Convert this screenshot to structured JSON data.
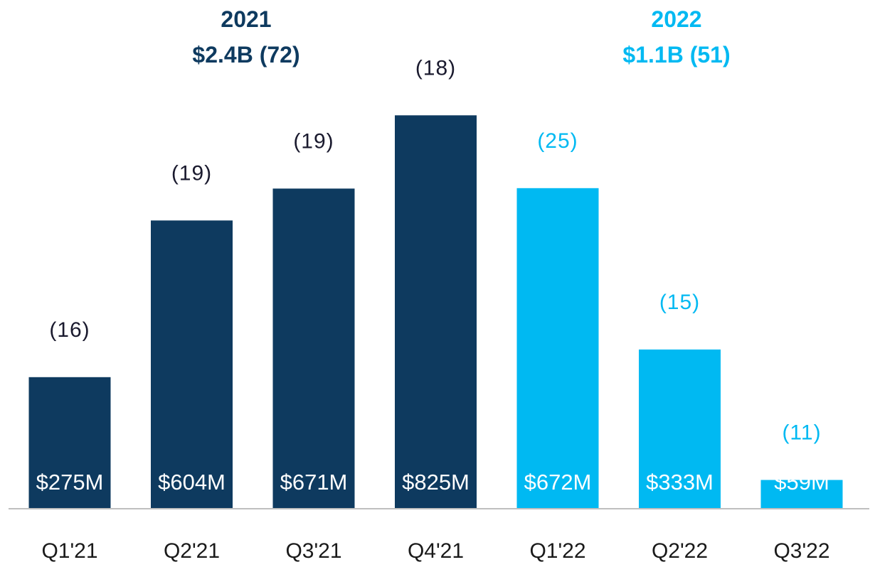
{
  "colors": {
    "dark_blue": "#0e3a5f",
    "light_blue": "#00b9f2",
    "count_dark": "#1a1a2e",
    "baseline": "#bfbfbf",
    "tick_text": "#1a1a1a"
  },
  "headers": {
    "y2021": {
      "year": "2021",
      "summary": "$2.4B (72)"
    },
    "y2022": {
      "year": "2022",
      "summary": "$1.1B (51)"
    }
  },
  "chart_data": {
    "type": "bar",
    "title": "",
    "xlabel": "",
    "ylabel": "",
    "ylim": [
      0,
      1000
    ],
    "grid": false,
    "categories": [
      "Q1'21",
      "Q2'21",
      "Q3'21",
      "Q4'21",
      "Q1'22",
      "Q2'22",
      "Q3'22"
    ],
    "values": [
      275,
      604,
      671,
      825,
      672,
      333,
      59
    ],
    "value_labels": [
      "$275M",
      "$604M",
      "$671M",
      "$825M",
      "$672M",
      "$333M",
      "$59M"
    ],
    "counts": [
      "(16)",
      "(19)",
      "(19)",
      "(18)",
      "(25)",
      "(15)",
      "(11)"
    ],
    "groups": [
      "2021",
      "2021",
      "2021",
      "2021",
      "2022",
      "2022",
      "2022"
    ]
  }
}
